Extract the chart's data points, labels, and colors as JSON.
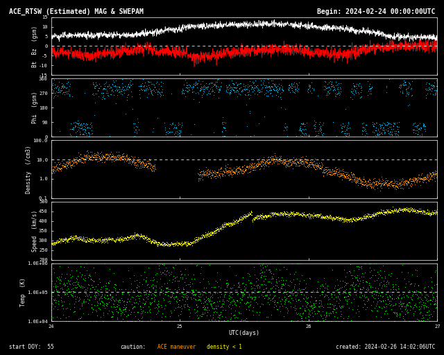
{
  "title_left": "ACE_RTSW (Estimated) MAG & SWEPAM",
  "title_right": "Begin: 2024-02-24 00:00:00UTC",
  "footer_left": "start DOY:  55",
  "footer_right": "created: 2024-02-26 14:02:06UTC",
  "xlabel": "UTC(days)",
  "xlim": [
    24,
    27
  ],
  "xticks": [
    24,
    25,
    26,
    27
  ],
  "bg_color": "#000000",
  "panel0": {
    "ylabel": "Bt  Bz  (gsm)",
    "ylim": [
      -15,
      15
    ],
    "yticks": [
      -15,
      -10,
      -5,
      0,
      5,
      10,
      15
    ],
    "dashed_y": 0,
    "color_bt": "#ffffff",
    "color_bz": "#ff0000"
  },
  "panel1": {
    "ylabel": "Phi  (gsm)",
    "ylim": [
      0,
      360
    ],
    "yticks": [
      0,
      90,
      180,
      270,
      360
    ],
    "color": "#00ccff"
  },
  "panel2": {
    "ylabel": "Density  (/cm3)",
    "ylim_log": [
      0.1,
      100.0
    ],
    "dashed_y": 10.0,
    "color": "#ff9900"
  },
  "panel3": {
    "ylabel": "Speed  (km/s)",
    "ylim": [
      200,
      500
    ],
    "yticks": [
      200,
      250,
      300,
      350,
      400,
      450,
      500
    ],
    "color": "#ffff00"
  },
  "panel4": {
    "ylabel": "Temp  (K)",
    "ylim_log": [
      10000,
      1000000
    ],
    "dashed_y": 100000,
    "color": "#00ff00"
  },
  "seed": 123
}
